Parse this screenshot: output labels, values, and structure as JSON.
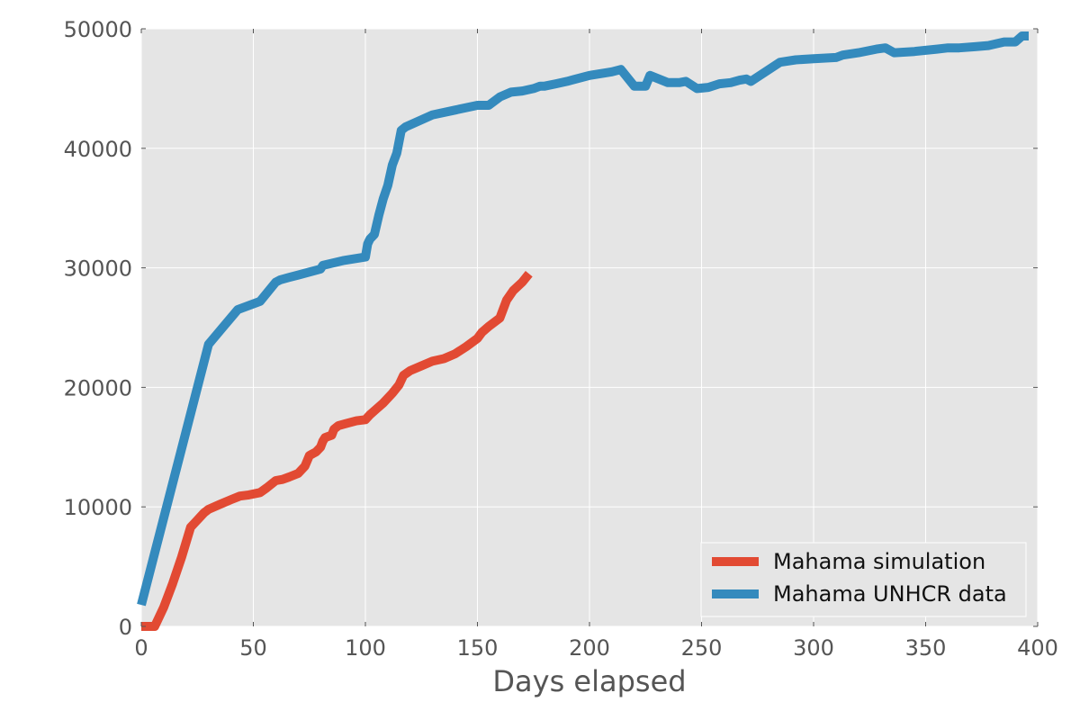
{
  "chart_data": {
    "type": "line",
    "title": "",
    "xlabel": "Days elapsed",
    "ylabel": "",
    "xlim": [
      0,
      400
    ],
    "ylim": [
      0,
      50000
    ],
    "x_ticks": [
      0,
      50,
      100,
      150,
      200,
      250,
      300,
      350,
      400
    ],
    "y_ticks": [
      0,
      10000,
      20000,
      30000,
      40000,
      50000
    ],
    "grid": true,
    "legend_position": "bottom-right",
    "background": "#e5e5e5",
    "series": [
      {
        "name": "Mahama simulation",
        "color": "#e24a33",
        "x": [
          0,
          6,
          10,
          14,
          18,
          22,
          24,
          28,
          30,
          35,
          40,
          44,
          48,
          53,
          56,
          58,
          60,
          63,
          66,
          70,
          73,
          75,
          76,
          78,
          80,
          81,
          82,
          85,
          86,
          88,
          92,
          96,
          100,
          102,
          105,
          108,
          112,
          115,
          117,
          120,
          125,
          130,
          135,
          140,
          145,
          150,
          152,
          155,
          160,
          163,
          166,
          170,
          173
        ],
        "y": [
          0,
          0,
          1600,
          3600,
          5800,
          8300,
          8700,
          9500,
          9800,
          10200,
          10600,
          10900,
          11000,
          11200,
          11600,
          11900,
          12200,
          12300,
          12500,
          12800,
          13400,
          14300,
          14400,
          14600,
          15000,
          15500,
          15800,
          16000,
          16500,
          16800,
          17000,
          17200,
          17300,
          17700,
          18200,
          18700,
          19500,
          20200,
          21000,
          21400,
          21800,
          22200,
          22400,
          22800,
          23400,
          24100,
          24600,
          25100,
          25800,
          27300,
          28100,
          28800,
          29500
        ]
      },
      {
        "name": "Mahama UNHCR data",
        "color": "#348abd",
        "x": [
          0,
          30,
          43,
          53,
          60,
          62,
          66,
          70,
          80,
          81,
          90,
          100,
          101,
          102,
          104,
          106,
          108,
          110,
          112,
          114,
          116,
          118,
          130,
          140,
          150,
          155,
          160,
          165,
          170,
          175,
          178,
          180,
          185,
          190,
          200,
          210,
          214,
          220,
          225,
          227,
          235,
          240,
          243,
          248,
          253,
          258,
          263,
          267,
          270,
          272,
          285,
          292,
          300,
          310,
          313,
          320,
          328,
          332,
          336,
          345,
          355,
          360,
          365,
          372,
          378,
          385,
          390,
          393,
          396
        ],
        "y": [
          1800,
          23600,
          26500,
          27200,
          28800,
          29000,
          29200,
          29400,
          29900,
          30200,
          30600,
          30900,
          32000,
          32400,
          32800,
          34400,
          35800,
          36900,
          38600,
          39600,
          41500,
          41800,
          42800,
          43200,
          43600,
          43600,
          44300,
          44700,
          44800,
          45000,
          45200,
          45200,
          45400,
          45600,
          46100,
          46400,
          46600,
          45200,
          45200,
          46100,
          45500,
          45500,
          45600,
          45000,
          45100,
          45400,
          45500,
          45700,
          45800,
          45600,
          47200,
          47400,
          47500,
          47600,
          47800,
          48000,
          48300,
          48400,
          48000,
          48100,
          48300,
          48400,
          48400,
          48500,
          48600,
          48900,
          48900,
          49400,
          49400
        ]
      }
    ]
  }
}
